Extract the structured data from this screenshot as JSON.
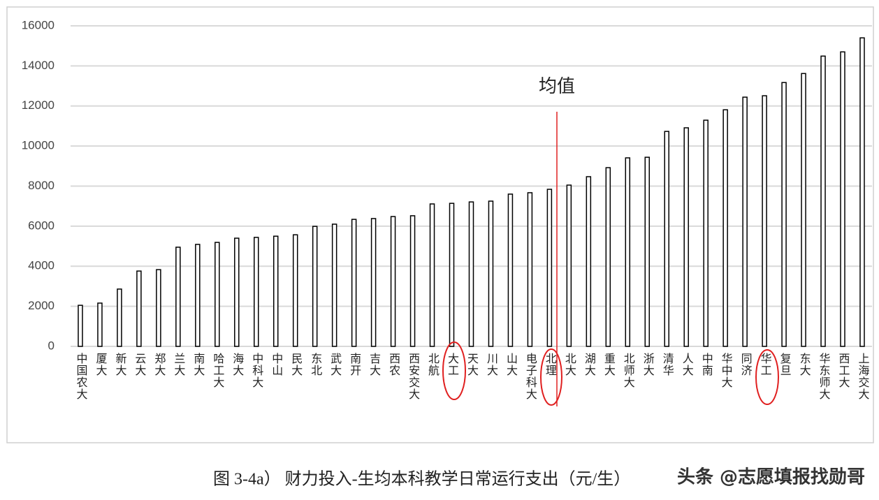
{
  "chart_data": {
    "type": "bar",
    "categories": [
      "中国农大",
      "厦大",
      "新大",
      "云大",
      "郑大",
      "兰大",
      "南大",
      "哈工大",
      "海大",
      "中科大",
      "中山",
      "民大",
      "东北",
      "武大",
      "南开",
      "吉大",
      "西农",
      "西安交大",
      "北航",
      "大工",
      "天大",
      "川大",
      "山大",
      "电子科大",
      "北理",
      "北大",
      "湖大",
      "重大",
      "北师大",
      "浙大",
      "清华",
      "人大",
      "中南",
      "华中大",
      "同济",
      "华工",
      "复旦",
      "东大",
      "华东师大",
      "西工大",
      "上海交大"
    ],
    "values": [
      2050,
      2160,
      2860,
      3760,
      3830,
      4950,
      5090,
      5190,
      5400,
      5440,
      5500,
      5570,
      5990,
      6100,
      6340,
      6380,
      6480,
      6520,
      7110,
      7140,
      7210,
      7250,
      7600,
      7670,
      7840,
      8050,
      8470,
      8920,
      9410,
      9440,
      10730,
      10910,
      11290,
      11810,
      12440,
      12510,
      13170,
      13620,
      14490,
      14700,
      15400
    ],
    "color": "#000000",
    "ylim": [
      0,
      16000
    ],
    "yticks": [
      0,
      2000,
      4000,
      6000,
      8000,
      10000,
      12000,
      14000,
      16000
    ],
    "grid": true,
    "annotations": [
      "均值"
    ],
    "caption": "图 3-4a） 财力投入-生均本科教学日常运行支出（元/生）"
  },
  "watermark": "头条 @志愿填报找勋哥"
}
